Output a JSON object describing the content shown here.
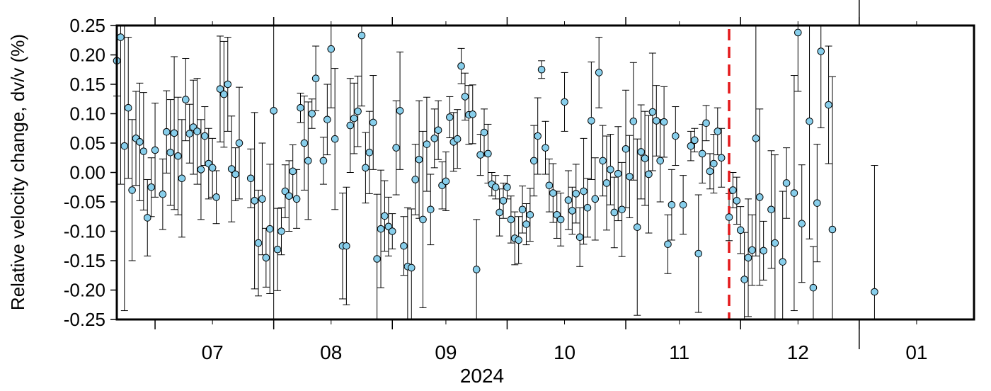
{
  "chart_data": {
    "type": "scatter",
    "title": "",
    "ylabel": "Relative velocity change, dv/v (%)",
    "xlabel": "2024",
    "ylim": [
      -0.25,
      0.25
    ],
    "y_ticks": [
      "0.25",
      "0.20",
      "0.15",
      "0.10",
      "0.05",
      "0.00",
      "-0.05",
      "-0.10",
      "-0.15",
      "-0.20",
      "-0.25"
    ],
    "y_tick_values": [
      0.25,
      0.2,
      0.15,
      0.1,
      0.05,
      0.0,
      -0.05,
      -0.1,
      -0.15,
      -0.2,
      -0.25
    ],
    "x_domain": [
      "2024-06-21",
      "2025-01-31"
    ],
    "month_labels": [
      "07",
      "08",
      "09",
      "10",
      "11",
      "12",
      "01"
    ],
    "month_label_dates": [
      "2024-07-16",
      "2024-08-16",
      "2024-09-15",
      "2024-10-16",
      "2024-11-15",
      "2024-12-16",
      "2025-01-16"
    ],
    "month_boundaries": [
      "2024-07-01",
      "2024-08-01",
      "2024-09-01",
      "2024-10-01",
      "2024-11-01",
      "2024-12-01",
      "2025-01-01"
    ],
    "year_boundary": "2025-01-01",
    "event_date": "2024-11-28",
    "grid": false,
    "legend": "none",
    "colors": {
      "marker_fill": "#87CEEB",
      "marker_edge": "#000000",
      "error_bar": "#000000",
      "event_line": "#E41A1C",
      "frame": "#000000"
    },
    "series": [
      {
        "points": [
          [
            "2024-06-21",
            0.19,
            0.06
          ],
          [
            "2024-06-22",
            0.23,
            0.25
          ],
          [
            "2024-06-23",
            0.045,
            0.28
          ],
          [
            "2024-06-24",
            0.11,
            0.12
          ],
          [
            "2024-06-25",
            -0.03,
            0.12
          ],
          [
            "2024-06-26",
            0.058,
            0.08
          ],
          [
            "2024-06-27",
            0.052,
            0.1
          ],
          [
            "2024-06-28",
            0.036,
            0.1
          ],
          [
            "2024-06-29",
            -0.077,
            0.065
          ],
          [
            "2024-06-30",
            -0.025,
            0.05
          ],
          [
            "2024-07-01",
            0.038,
            0.08
          ],
          [
            "2024-07-03",
            -0.037,
            0.06
          ],
          [
            "2024-07-04",
            0.069,
            0.07
          ],
          [
            "2024-07-05",
            0.034,
            0.09
          ],
          [
            "2024-07-06",
            0.067,
            0.13
          ],
          [
            "2024-07-07",
            0.028,
            0.1
          ],
          [
            "2024-07-08",
            -0.01,
            0.1
          ],
          [
            "2024-07-09",
            0.124,
            0.07
          ],
          [
            "2024-07-10",
            0.066,
            0.05
          ],
          [
            "2024-07-11",
            0.077,
            0.08
          ],
          [
            "2024-07-12",
            0.07,
            0.09
          ],
          [
            "2024-07-13",
            0.005,
            0.085
          ],
          [
            "2024-07-14",
            0.062,
            0.05
          ],
          [
            "2024-07-15",
            0.015,
            0.06
          ],
          [
            "2024-07-16",
            0.008,
            0.05
          ],
          [
            "2024-07-17",
            -0.042,
            0.045
          ],
          [
            "2024-07-18",
            0.142,
            0.09
          ],
          [
            "2024-07-19",
            0.133,
            0.09
          ],
          [
            "2024-07-20",
            0.15,
            0.08
          ],
          [
            "2024-07-21",
            0.006,
            0.09
          ],
          [
            "2024-07-22",
            -0.003,
            0.045
          ],
          [
            "2024-07-23",
            0.05,
            0.095
          ],
          [
            "2024-07-26",
            -0.01,
            0.05
          ],
          [
            "2024-07-27",
            -0.048,
            0.15
          ],
          [
            "2024-07-28",
            -0.12,
            0.09
          ],
          [
            "2024-07-29",
            -0.045,
            0.095
          ],
          [
            "2024-07-30",
            -0.145,
            0.05
          ],
          [
            "2024-07-31",
            -0.096,
            0.11
          ],
          [
            "2024-08-01",
            0.105,
            0.36
          ],
          [
            "2024-08-02",
            -0.131,
            0.07
          ],
          [
            "2024-08-03",
            -0.1,
            0.04
          ],
          [
            "2024-08-04",
            -0.032,
            0.045
          ],
          [
            "2024-08-05",
            -0.04,
            0.06
          ],
          [
            "2024-08-06",
            0.002,
            0.045
          ],
          [
            "2024-08-07",
            -0.045,
            0.05
          ],
          [
            "2024-08-08",
            0.11,
            0.025
          ],
          [
            "2024-08-09",
            0.05,
            0.08
          ],
          [
            "2024-08-10",
            0.02,
            0.1
          ],
          [
            "2024-08-11",
            0.1,
            0.025
          ],
          [
            "2024-08-12",
            0.16,
            0.055
          ],
          [
            "2024-08-14",
            0.02,
            0.04
          ],
          [
            "2024-08-15",
            0.09,
            0.06
          ],
          [
            "2024-08-16",
            0.21,
            0.1
          ],
          [
            "2024-08-17",
            0.057,
            0.12
          ],
          [
            "2024-08-19",
            -0.125,
            0.09
          ],
          [
            "2024-08-20",
            -0.125,
            0.1
          ],
          [
            "2024-08-21",
            0.08,
            0.08
          ],
          [
            "2024-08-22",
            0.092,
            0.06
          ],
          [
            "2024-08-23",
            0.104,
            0.06
          ],
          [
            "2024-08-24",
            0.233,
            0.12
          ],
          [
            "2024-08-25",
            0.008,
            0.06
          ],
          [
            "2024-08-26",
            0.034,
            0.07
          ],
          [
            "2024-08-27",
            0.085,
            0.08
          ],
          [
            "2024-08-28",
            -0.147,
            0.11
          ],
          [
            "2024-08-29",
            -0.096,
            0.1
          ],
          [
            "2024-08-30",
            -0.074,
            0.06
          ],
          [
            "2024-08-31",
            -0.092,
            0.05
          ],
          [
            "2024-09-01",
            -0.1,
            0.03
          ],
          [
            "2024-09-02",
            0.042,
            0.08
          ],
          [
            "2024-09-03",
            0.105,
            0.1
          ],
          [
            "2024-09-04",
            -0.125,
            0.05
          ],
          [
            "2024-09-05",
            -0.16,
            0.1
          ],
          [
            "2024-09-06",
            -0.162,
            0.1
          ],
          [
            "2024-09-07",
            -0.012,
            0.06
          ],
          [
            "2024-09-08",
            0.022,
            0.1
          ],
          [
            "2024-09-09",
            -0.08,
            0.15
          ],
          [
            "2024-09-10",
            0.048,
            0.08
          ],
          [
            "2024-09-11",
            -0.063,
            0.06
          ],
          [
            "2024-09-12",
            0.058,
            0.05
          ],
          [
            "2024-09-13",
            0.072,
            0.05
          ],
          [
            "2024-09-14",
            -0.022,
            0.04
          ],
          [
            "2024-09-15",
            -0.015,
            0.05
          ],
          [
            "2024-09-16",
            0.094,
            0.035
          ],
          [
            "2024-09-17",
            0.052,
            0.05
          ],
          [
            "2024-09-18",
            0.057,
            0.05
          ],
          [
            "2024-09-19",
            0.181,
            0.03
          ],
          [
            "2024-09-20",
            0.129,
            0.04
          ],
          [
            "2024-09-21",
            0.098,
            0.05
          ],
          [
            "2024-09-22",
            0.099,
            0.05
          ],
          [
            "2024-09-23",
            -0.165,
            0.085
          ],
          [
            "2024-09-24",
            0.03,
            0.035
          ],
          [
            "2024-09-25",
            0.068,
            0.04
          ],
          [
            "2024-09-26",
            0.032,
            0.05
          ],
          [
            "2024-09-27",
            -0.02,
            0.02
          ],
          [
            "2024-09-28",
            -0.025,
            0.02
          ],
          [
            "2024-09-29",
            -0.068,
            0.04
          ],
          [
            "2024-09-30",
            -0.048,
            0.03
          ],
          [
            "2024-10-01",
            -0.025,
            0.02
          ],
          [
            "2024-10-02",
            -0.08,
            0.04
          ],
          [
            "2024-10-03",
            -0.112,
            0.045
          ],
          [
            "2024-10-04",
            -0.115,
            0.04
          ],
          [
            "2024-10-05",
            -0.063,
            0.04
          ],
          [
            "2024-10-06",
            -0.088,
            0.035
          ],
          [
            "2024-10-07",
            -0.072,
            0.045
          ],
          [
            "2024-10-08",
            0.02,
            0.06
          ],
          [
            "2024-10-09",
            0.062,
            0.065
          ],
          [
            "2024-10-10",
            0.175,
            0.015
          ],
          [
            "2024-10-11",
            0.042,
            0.045
          ],
          [
            "2024-10-12",
            -0.022,
            0.045
          ],
          [
            "2024-10-13",
            -0.035,
            0.05
          ],
          [
            "2024-10-14",
            -0.072,
            0.04
          ],
          [
            "2024-10-15",
            -0.08,
            0.045
          ],
          [
            "2024-10-16",
            0.12,
            0.05
          ],
          [
            "2024-10-17",
            -0.047,
            0.05
          ],
          [
            "2024-10-18",
            -0.065,
            0.04
          ],
          [
            "2024-10-19",
            -0.036,
            0.05
          ],
          [
            "2024-10-20",
            -0.11,
            0.05
          ],
          [
            "2024-10-21",
            -0.032,
            0.09
          ],
          [
            "2024-10-22",
            -0.06,
            0.05
          ],
          [
            "2024-10-23",
            0.088,
            0.1
          ],
          [
            "2024-10-24",
            -0.045,
            0.07
          ],
          [
            "2024-10-25",
            0.17,
            0.06
          ],
          [
            "2024-10-26",
            0.02,
            0.06
          ],
          [
            "2024-10-27",
            -0.018,
            0.08
          ],
          [
            "2024-10-28",
            0.005,
            0.06
          ],
          [
            "2024-10-29",
            -0.068,
            0.06
          ],
          [
            "2024-10-30",
            -0.002,
            0.08
          ],
          [
            "2024-10-31",
            -0.063,
            0.08
          ],
          [
            "2024-11-01",
            0.04,
            0.1
          ],
          [
            "2024-11-02",
            -0.007,
            0.07
          ],
          [
            "2024-11-03",
            0.087,
            0.1
          ],
          [
            "2024-11-04",
            -0.093,
            0.15
          ],
          [
            "2024-11-05",
            0.035,
            0.08
          ],
          [
            "2024-11-06",
            0.024,
            0.08
          ],
          [
            "2024-11-07",
            -0.003,
            0.1
          ],
          [
            "2024-11-08",
            0.103,
            0.1
          ],
          [
            "2024-11-09",
            0.088,
            0.06
          ],
          [
            "2024-11-10",
            0.02,
            0.07
          ],
          [
            "2024-11-11",
            0.086,
            0.06
          ],
          [
            "2024-11-12",
            -0.122,
            0.05
          ],
          [
            "2024-11-13",
            -0.055,
            0.06
          ],
          [
            "2024-11-14",
            0.062,
            0.05
          ],
          [
            "2024-11-16",
            -0.055,
            0.05
          ],
          [
            "2024-11-18",
            0.045,
            0.025
          ],
          [
            "2024-11-19",
            0.055,
            0.02
          ],
          [
            "2024-11-20",
            -0.138,
            0.1
          ],
          [
            "2024-11-21",
            0.032,
            0.05
          ],
          [
            "2024-11-22",
            0.084,
            0.03
          ],
          [
            "2024-11-23",
            0.002,
            0.03
          ],
          [
            "2024-11-24",
            0.015,
            0.05
          ],
          [
            "2024-11-25",
            0.07,
            0.04
          ],
          [
            "2024-11-26",
            0.025,
            0.05
          ],
          [
            "2024-11-28",
            -0.076,
            0.04
          ],
          [
            "2024-11-29",
            -0.03,
            0.03
          ],
          [
            "2024-11-30",
            -0.048,
            0.04
          ],
          [
            "2024-12-01",
            -0.098,
            0.04
          ],
          [
            "2024-12-02",
            -0.182,
            0.08
          ],
          [
            "2024-12-03",
            -0.145,
            0.1
          ],
          [
            "2024-12-04",
            -0.132,
            0.06
          ],
          [
            "2024-12-05",
            0.058,
            0.2
          ],
          [
            "2024-12-06",
            -0.042,
            0.15
          ],
          [
            "2024-12-07",
            -0.133,
            0.05
          ],
          [
            "2024-12-09",
            -0.063,
            0.1
          ],
          [
            "2024-12-10",
            -0.12,
            0.15
          ],
          [
            "2024-12-12",
            -0.152,
            0.12
          ],
          [
            "2024-12-13",
            -0.018,
            0.06
          ],
          [
            "2024-12-15",
            -0.035,
            0.2
          ],
          [
            "2024-12-16",
            0.238,
            0.1
          ],
          [
            "2024-12-17",
            -0.087,
            0.1
          ],
          [
            "2024-12-19",
            0.087,
            0.2
          ],
          [
            "2024-12-20",
            -0.196,
            0.07
          ],
          [
            "2024-12-21",
            -0.052,
            0.1
          ],
          [
            "2024-12-22",
            0.206,
            0.13
          ],
          [
            "2024-12-24",
            0.115,
            0.1
          ],
          [
            "2024-12-25",
            -0.097,
            0.26
          ],
          [
            "2025-01-05",
            -0.203,
            0.215
          ]
        ]
      }
    ]
  }
}
